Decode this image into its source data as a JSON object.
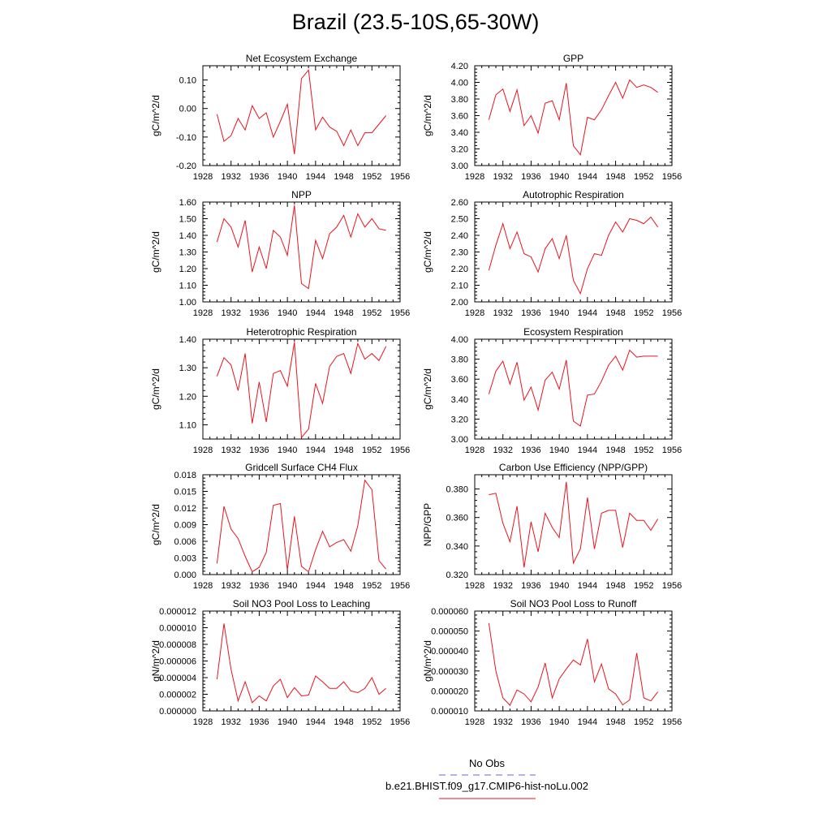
{
  "title": "Brazil (23.5-10S,65-30W)",
  "colors": {
    "series": "#e8141e",
    "obs": "#6a6ad8",
    "axis": "#000000"
  },
  "legend": {
    "obs_label": "No Obs",
    "model_label": "b.e21.BHIST.f09_g17.CMIP6-hist-noLu.002"
  },
  "chart_data": [
    {
      "type": "line",
      "title": "Net Ecosystem Exchange",
      "ylabel": "gC/m^2/d",
      "xlim": [
        1928,
        1956
      ],
      "ylim": [
        -0.2,
        0.15
      ],
      "yticks": [
        "0.10",
        "0.00",
        "-0.10",
        "-0.20"
      ],
      "ytick_values": [
        0.1,
        0.0,
        -0.1,
        -0.2
      ],
      "xticks": [
        "1928",
        "1932",
        "1936",
        "1940",
        "1944",
        "1948",
        "1952",
        "1956"
      ],
      "x": [
        1930,
        1931,
        1932,
        1933,
        1934,
        1935,
        1936,
        1937,
        1938,
        1939,
        1940,
        1941,
        1942,
        1943,
        1944,
        1945,
        1946,
        1947,
        1948,
        1949,
        1950,
        1951,
        1952,
        1953,
        1954
      ],
      "values": [
        -0.02,
        -0.115,
        -0.095,
        -0.035,
        -0.075,
        0.01,
        -0.035,
        -0.015,
        -0.1,
        -0.045,
        0.015,
        -0.16,
        0.105,
        0.135,
        -0.075,
        -0.03,
        -0.065,
        -0.08,
        -0.13,
        -0.075,
        -0.13,
        -0.085,
        -0.085,
        -0.055,
        -0.025
      ]
    },
    {
      "type": "line",
      "title": "GPP",
      "ylabel": "gC/m^2/d",
      "xlim": [
        1928,
        1956
      ],
      "ylim": [
        3.0,
        4.2
      ],
      "yticks": [
        "4.20",
        "4.00",
        "3.80",
        "3.60",
        "3.40",
        "3.20",
        "3.00"
      ],
      "ytick_values": [
        4.2,
        4.0,
        3.8,
        3.6,
        3.4,
        3.2,
        3.0
      ],
      "xticks": [
        "1928",
        "1932",
        "1936",
        "1940",
        "1944",
        "1948",
        "1952",
        "1956"
      ],
      "x": [
        1930,
        1931,
        1932,
        1933,
        1934,
        1935,
        1936,
        1937,
        1938,
        1939,
        1940,
        1941,
        1942,
        1943,
        1944,
        1945,
        1946,
        1947,
        1948,
        1949,
        1950,
        1951,
        1952,
        1953,
        1954
      ],
      "values": [
        3.55,
        3.85,
        3.92,
        3.65,
        3.91,
        3.48,
        3.6,
        3.39,
        3.75,
        3.78,
        3.55,
        3.99,
        3.24,
        3.13,
        3.58,
        3.55,
        3.67,
        3.84,
        4.0,
        3.81,
        4.03,
        3.94,
        3.97,
        3.94,
        3.88
      ]
    },
    {
      "type": "line",
      "title": "NPP",
      "ylabel": "gC/m^2/d",
      "xlim": [
        1928,
        1956
      ],
      "ylim": [
        1.0,
        1.6
      ],
      "yticks": [
        "1.60",
        "1.50",
        "1.40",
        "1.30",
        "1.20",
        "1.10",
        "1.00"
      ],
      "ytick_values": [
        1.6,
        1.5,
        1.4,
        1.3,
        1.2,
        1.1,
        1.0
      ],
      "xticks": [
        "1928",
        "1932",
        "1936",
        "1940",
        "1944",
        "1948",
        "1952",
        "1956"
      ],
      "x": [
        1930,
        1931,
        1932,
        1933,
        1934,
        1935,
        1936,
        1937,
        1938,
        1939,
        1940,
        1941,
        1942,
        1943,
        1944,
        1945,
        1946,
        1947,
        1948,
        1949,
        1950,
        1951,
        1952,
        1953,
        1954
      ],
      "values": [
        1.36,
        1.5,
        1.45,
        1.33,
        1.49,
        1.18,
        1.33,
        1.2,
        1.43,
        1.39,
        1.28,
        1.58,
        1.11,
        1.08,
        1.37,
        1.26,
        1.41,
        1.45,
        1.52,
        1.39,
        1.53,
        1.45,
        1.5,
        1.44,
        1.43
      ]
    },
    {
      "type": "line",
      "title": "Autotrophic Respiration",
      "ylabel": "gC/m^2/d",
      "xlim": [
        1928,
        1956
      ],
      "ylim": [
        2.0,
        2.6
      ],
      "yticks": [
        "2.60",
        "2.50",
        "2.40",
        "2.30",
        "2.20",
        "2.10",
        "2.00"
      ],
      "ytick_values": [
        2.6,
        2.5,
        2.4,
        2.3,
        2.2,
        2.1,
        2.0
      ],
      "xticks": [
        "1928",
        "1932",
        "1936",
        "1940",
        "1944",
        "1948",
        "1952",
        "1956"
      ],
      "x": [
        1930,
        1931,
        1932,
        1933,
        1934,
        1935,
        1936,
        1937,
        1938,
        1939,
        1940,
        1941,
        1942,
        1943,
        1944,
        1945,
        1946,
        1947,
        1948,
        1949,
        1950,
        1951,
        1952,
        1953,
        1954
      ],
      "values": [
        2.19,
        2.34,
        2.47,
        2.32,
        2.42,
        2.29,
        2.27,
        2.18,
        2.32,
        2.38,
        2.26,
        2.4,
        2.13,
        2.05,
        2.2,
        2.29,
        2.28,
        2.4,
        2.48,
        2.42,
        2.5,
        2.49,
        2.47,
        2.51,
        2.45
      ]
    },
    {
      "type": "line",
      "title": "Heterotrophic Respiration",
      "ylabel": "gC/m^2/d",
      "xlim": [
        1928,
        1956
      ],
      "ylim": [
        1.05,
        1.4
      ],
      "yticks": [
        "1.40",
        "1.30",
        "1.20",
        "1.10"
      ],
      "ytick_values": [
        1.4,
        1.3,
        1.2,
        1.1
      ],
      "xticks": [
        "1928",
        "1932",
        "1936",
        "1940",
        "1944",
        "1948",
        "1952",
        "1956"
      ],
      "x": [
        1930,
        1931,
        1932,
        1933,
        1934,
        1935,
        1936,
        1937,
        1938,
        1939,
        1940,
        1941,
        1942,
        1943,
        1944,
        1945,
        1946,
        1947,
        1948,
        1949,
        1950,
        1951,
        1952,
        1953,
        1954
      ],
      "values": [
        1.27,
        1.335,
        1.31,
        1.22,
        1.35,
        1.105,
        1.25,
        1.11,
        1.28,
        1.29,
        1.235,
        1.39,
        1.055,
        1.085,
        1.245,
        1.175,
        1.305,
        1.34,
        1.35,
        1.28,
        1.385,
        1.33,
        1.35,
        1.325,
        1.375
      ]
    },
    {
      "type": "line",
      "title": "Ecosystem Respiration",
      "ylabel": "gC/m^2/d",
      "xlim": [
        1928,
        1956
      ],
      "ylim": [
        3.0,
        4.0
      ],
      "yticks": [
        "4.00",
        "3.80",
        "3.60",
        "3.40",
        "3.20",
        "3.00"
      ],
      "ytick_values": [
        4.0,
        3.8,
        3.6,
        3.4,
        3.2,
        3.0
      ],
      "xticks": [
        "1928",
        "1932",
        "1936",
        "1940",
        "1944",
        "1948",
        "1952",
        "1956"
      ],
      "x": [
        1930,
        1931,
        1932,
        1933,
        1934,
        1935,
        1936,
        1937,
        1938,
        1939,
        1940,
        1941,
        1942,
        1943,
        1944,
        1945,
        1946,
        1947,
        1948,
        1949,
        1950,
        1951,
        1952,
        1953,
        1954
      ],
      "values": [
        3.45,
        3.68,
        3.78,
        3.55,
        3.77,
        3.39,
        3.52,
        3.29,
        3.59,
        3.67,
        3.5,
        3.79,
        3.18,
        3.13,
        3.44,
        3.45,
        3.58,
        3.74,
        3.83,
        3.69,
        3.89,
        3.82,
        3.83,
        3.83,
        3.83
      ]
    },
    {
      "type": "line",
      "title": "Gridcell Surface CH4 Flux",
      "ylabel": "gC/m^2/d",
      "xlim": [
        1928,
        1956
      ],
      "ylim": [
        0.0,
        0.018
      ],
      "yticks": [
        "0.018",
        "0.015",
        "0.012",
        "0.009",
        "0.006",
        "0.003",
        "0.000"
      ],
      "ytick_values": [
        0.018,
        0.015,
        0.012,
        0.009,
        0.006,
        0.003,
        0.0
      ],
      "xticks": [
        "1928",
        "1932",
        "1936",
        "1940",
        "1944",
        "1948",
        "1952",
        "1956"
      ],
      "x": [
        1930,
        1931,
        1932,
        1933,
        1934,
        1935,
        1936,
        1937,
        1938,
        1939,
        1940,
        1941,
        1942,
        1943,
        1944,
        1945,
        1946,
        1947,
        1948,
        1949,
        1950,
        1951,
        1952,
        1953,
        1954
      ],
      "values": [
        0.002,
        0.0123,
        0.0082,
        0.0065,
        0.0033,
        0.0005,
        0.0013,
        0.004,
        0.0125,
        0.0128,
        0.0008,
        0.0105,
        0.0015,
        0.0005,
        0.0045,
        0.0078,
        0.005,
        0.0058,
        0.0063,
        0.0042,
        0.0088,
        0.017,
        0.0153,
        0.0025,
        0.001
      ]
    },
    {
      "type": "line",
      "title": "Carbon Use Efficiency (NPP/GPP)",
      "ylabel": "NPP/GPP",
      "xlim": [
        1928,
        1956
      ],
      "ylim": [
        0.32,
        0.39
      ],
      "yticks": [
        "0.380",
        "0.360",
        "0.340",
        "0.320"
      ],
      "ytick_values": [
        0.38,
        0.36,
        0.34,
        0.32
      ],
      "xticks": [
        "1928",
        "1932",
        "1936",
        "1940",
        "1944",
        "1948",
        "1952",
        "1956"
      ],
      "x": [
        1930,
        1931,
        1932,
        1933,
        1934,
        1935,
        1936,
        1937,
        1938,
        1939,
        1940,
        1941,
        1942,
        1943,
        1944,
        1945,
        1946,
        1947,
        1948,
        1949,
        1950,
        1951,
        1952,
        1953,
        1954
      ],
      "values": [
        0.376,
        0.377,
        0.356,
        0.343,
        0.368,
        0.325,
        0.357,
        0.336,
        0.363,
        0.353,
        0.346,
        0.385,
        0.328,
        0.338,
        0.374,
        0.338,
        0.363,
        0.365,
        0.365,
        0.339,
        0.363,
        0.358,
        0.358,
        0.351,
        0.359
      ]
    },
    {
      "type": "line",
      "title": "Soil NO3 Pool Loss to Leaching",
      "ylabel": "gN/m^2/d",
      "xlim": [
        1928,
        1956
      ],
      "ylim": [
        0.0,
        1.2e-05
      ],
      "yticks": [
        "0.000012",
        "0.000010",
        "0.000008",
        "0.000006",
        "0.000004",
        "0.000002",
        "0.000000"
      ],
      "ytick_values": [
        1.2e-05,
        1e-05,
        8e-06,
        6e-06,
        4e-06,
        2e-06,
        0.0
      ],
      "xticks": [
        "1928",
        "1932",
        "1936",
        "1940",
        "1944",
        "1948",
        "1952",
        "1956"
      ],
      "x": [
        1930,
        1931,
        1932,
        1933,
        1934,
        1935,
        1936,
        1937,
        1938,
        1939,
        1940,
        1941,
        1942,
        1943,
        1944,
        1945,
        1946,
        1947,
        1948,
        1949,
        1950,
        1951,
        1952,
        1953,
        1954
      ],
      "values": [
        3.8e-06,
        1.05e-05,
        5e-06,
        1.2e-06,
        3.5e-06,
        1e-06,
        1.8e-06,
        1.2e-06,
        3e-06,
        3.8e-06,
        1.6e-06,
        2.8e-06,
        1.8e-06,
        1.9e-06,
        4.2e-06,
        3.5e-06,
        2.7e-06,
        2.7e-06,
        3.5e-06,
        2.4e-06,
        2.2e-06,
        2.7e-06,
        4e-06,
        2e-06,
        2.7e-06
      ]
    },
    {
      "type": "line",
      "title": "Soil NO3 Pool Loss to Runoff",
      "ylabel": "gN/m^2/d",
      "xlim": [
        1928,
        1956
      ],
      "ylim": [
        1e-05,
        6e-05
      ],
      "yticks": [
        "0.000060",
        "0.000050",
        "0.000040",
        "0.000030",
        "0.000020",
        "0.000010"
      ],
      "ytick_values": [
        6e-05,
        5e-05,
        4e-05,
        3e-05,
        2e-05,
        1e-05
      ],
      "xticks": [
        "1928",
        "1932",
        "1936",
        "1940",
        "1944",
        "1948",
        "1952",
        "1956"
      ],
      "x": [
        1930,
        1931,
        1932,
        1933,
        1934,
        1935,
        1936,
        1937,
        1938,
        1939,
        1940,
        1941,
        1942,
        1943,
        1944,
        1945,
        1946,
        1947,
        1948,
        1949,
        1950,
        1951,
        1952,
        1953,
        1954
      ],
      "values": [
        5.4e-05,
        3e-05,
        1.65e-05,
        1.28e-05,
        2.05e-05,
        1.85e-05,
        1.45e-05,
        2.2e-05,
        3.4e-05,
        1.65e-05,
        2.6e-05,
        3.1e-05,
        3.55e-05,
        3.3e-05,
        4.6e-05,
        2.45e-05,
        3.35e-05,
        2.1e-05,
        1.85e-05,
        1.3e-05,
        1.55e-05,
        3.9e-05,
        1.65e-05,
        1.5e-05,
        1.95e-05
      ]
    }
  ]
}
